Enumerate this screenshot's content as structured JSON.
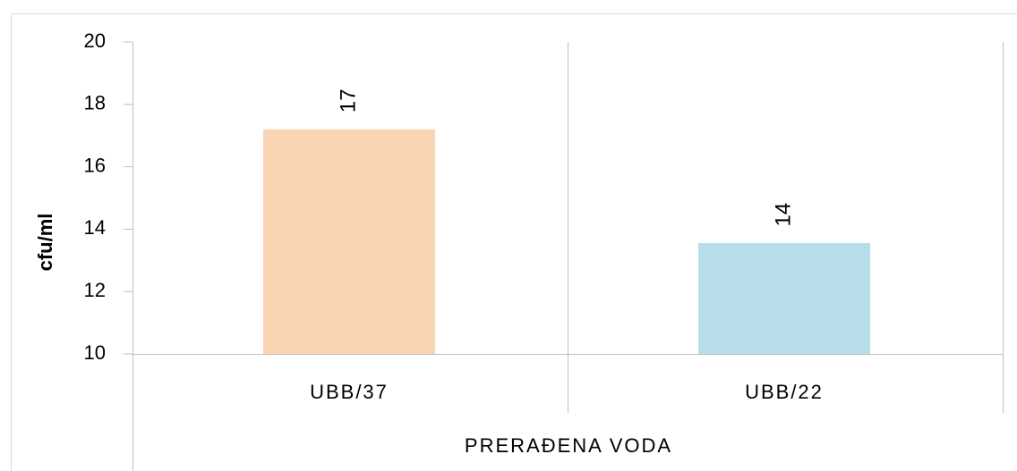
{
  "chart_data": {
    "type": "bar",
    "ylabel": "cfu/ml",
    "group_label": "PRERAĐENA VODA",
    "categories": [
      "UBB/37",
      "UBB/22"
    ],
    "values": [
      17.2,
      13.55
    ],
    "value_labels": [
      "17",
      "14"
    ],
    "colors": [
      "#fbd4b4",
      "#b7dde8"
    ],
    "ylim": [
      10,
      20
    ],
    "yticks": [
      10,
      12,
      14,
      16,
      18,
      20
    ],
    "grid": false
  }
}
